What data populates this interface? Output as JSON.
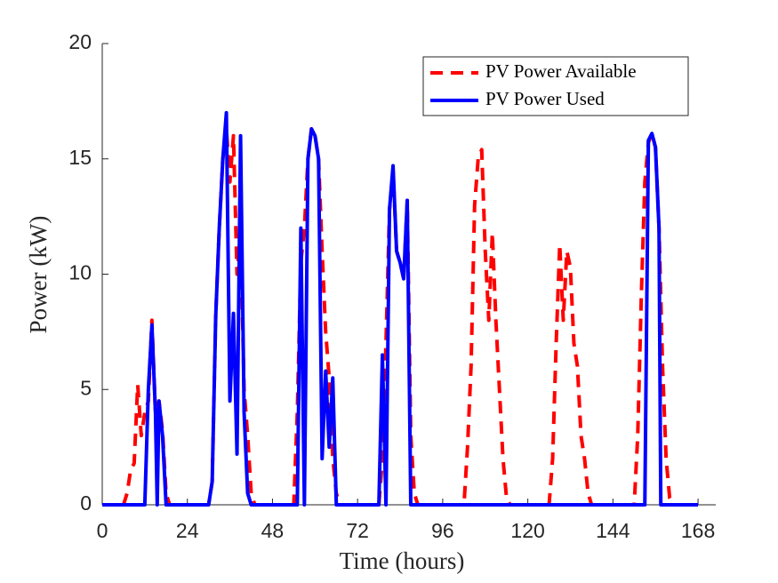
{
  "chart_data": {
    "type": "line",
    "xlabel": "Time (hours)",
    "ylabel": "Power (kW)",
    "xlim": [
      0,
      173
    ],
    "xticks": [
      0,
      24,
      48,
      72,
      96,
      120,
      144,
      168
    ],
    "ylim": [
      0,
      20
    ],
    "yticks": [
      0,
      5,
      10,
      15,
      20
    ],
    "legend": "upper right",
    "series": [
      {
        "name": "PV Power Available",
        "color": "#ff0000",
        "dash": true,
        "x": [
          0,
          6,
          7,
          8,
          9,
          10,
          11,
          12,
          13,
          14,
          15,
          16,
          17,
          18,
          19,
          30,
          31,
          32,
          33,
          34,
          35,
          36,
          37,
          38,
          39,
          40,
          41,
          42,
          43,
          54,
          55,
          56,
          57,
          58,
          59,
          60,
          61,
          62,
          63,
          64,
          65,
          66,
          67,
          78,
          79,
          80,
          81,
          82,
          83,
          84,
          85,
          86,
          87,
          88,
          89,
          102,
          103,
          104,
          105,
          106,
          107,
          108,
          109,
          110,
          111,
          112,
          113,
          114,
          115,
          126,
          127,
          128,
          129,
          130,
          131,
          132,
          133,
          134,
          135,
          136,
          137,
          138,
          150,
          151,
          152,
          153,
          154,
          155,
          156,
          157,
          158,
          159,
          160,
          161,
          168
        ],
        "values": [
          0,
          0,
          0.5,
          1.5,
          1.8,
          5.2,
          3,
          4,
          4.5,
          8,
          4,
          4.5,
          3.2,
          0.5,
          0,
          0,
          1,
          8.2,
          12,
          15,
          16.3,
          14,
          16,
          10,
          12,
          5,
          3,
          0.5,
          0,
          0,
          4,
          10.5,
          12,
          15,
          16.3,
          16,
          15,
          11,
          7.5,
          5.5,
          2,
          0.5,
          0,
          0,
          2,
          7,
          12.8,
          14.5,
          11,
          10.5,
          9.8,
          13.2,
          3,
          0.5,
          0,
          0,
          2.5,
          6,
          13,
          15,
          15.4,
          11,
          8,
          11.8,
          8,
          5,
          2,
          0.3,
          0,
          0,
          2,
          7,
          11.3,
          8,
          11,
          10.3,
          7,
          6,
          3,
          2,
          0.5,
          0,
          0,
          3,
          9,
          14,
          15.7,
          16.1,
          15.5,
          12,
          6,
          2,
          0.3,
          0,
          0
        ]
      },
      {
        "name": "PV Power Used",
        "color": "#0000ff",
        "dash": false,
        "x": [
          0,
          12,
          13,
          14,
          15,
          15.5,
          16,
          17,
          18,
          30,
          31,
          32,
          33,
          34,
          35,
          36,
          37,
          38,
          39,
          40,
          41,
          42,
          55,
          56,
          57,
          58,
          59,
          60,
          61,
          62,
          63,
          64,
          65,
          66,
          78,
          79,
          80,
          81,
          82,
          83,
          84,
          85,
          86,
          87,
          153,
          154,
          155,
          156,
          157,
          157.5,
          168
        ],
        "values": [
          0,
          0,
          5,
          7.8,
          4,
          0,
          4.5,
          3,
          0,
          0,
          1,
          8.2,
          12,
          15,
          17,
          4.5,
          8.3,
          2.2,
          16,
          4,
          0.5,
          0,
          0,
          12,
          0,
          15,
          16.3,
          16,
          15,
          2,
          5.8,
          2.5,
          5.5,
          0,
          0,
          6.5,
          0,
          12.8,
          14.7,
          11,
          10.5,
          9.8,
          13.2,
          0,
          0,
          15.8,
          16.1,
          15.5,
          12,
          0,
          0
        ]
      }
    ]
  }
}
